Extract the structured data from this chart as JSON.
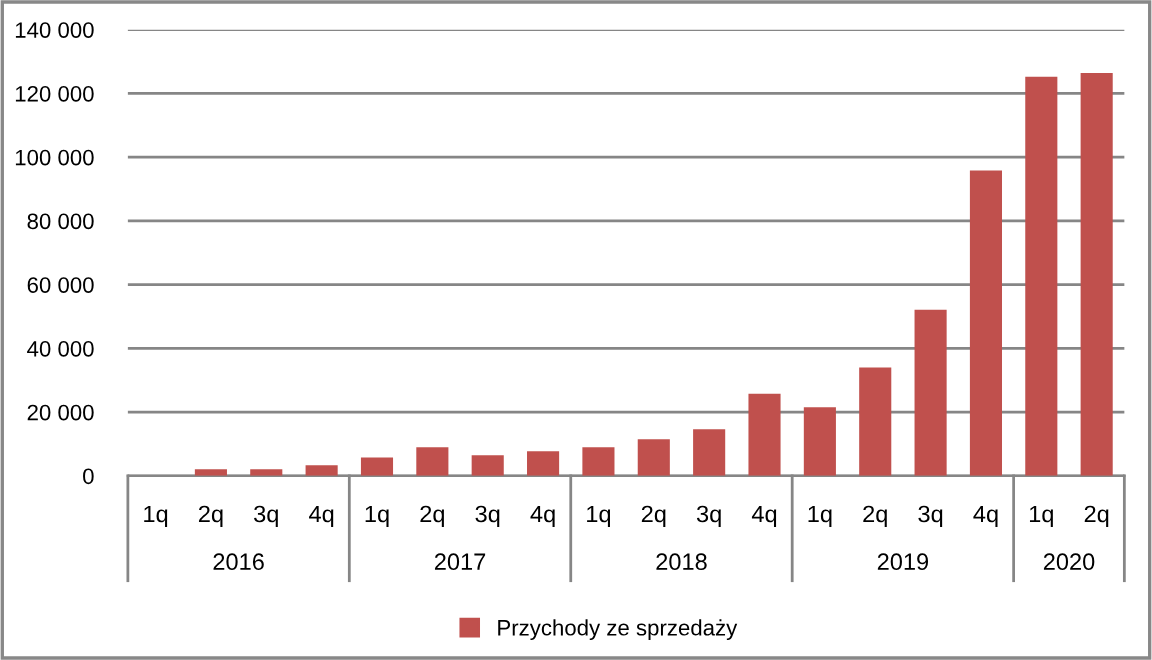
{
  "chart_data": {
    "type": "bar",
    "categories": [
      "1q",
      "2q",
      "3q",
      "4q",
      "1q",
      "2q",
      "3q",
      "4q",
      "1q",
      "2q",
      "3q",
      "4q",
      "1q",
      "2q",
      "3q",
      "4q",
      "1q",
      "2q"
    ],
    "series": [
      {
        "name": "Przychody ze sprzedaży",
        "color": "#c0504d",
        "values": [
          0,
          2100,
          2100,
          3300,
          5800,
          9000,
          6500,
          7700,
          9000,
          11500,
          14600,
          25800,
          21500,
          34000,
          52100,
          95800,
          125200,
          126400
        ]
      }
    ],
    "annotations": [
      "2016",
      "2017",
      "2018",
      "2019",
      "2020"
    ],
    "ylim": [
      0,
      140000
    ],
    "yticks": [
      {
        "value": 0,
        "label": "0"
      },
      {
        "value": 20000,
        "label": "20 000"
      },
      {
        "value": 40000,
        "label": "40 000"
      },
      {
        "value": 60000,
        "label": "60 000"
      },
      {
        "value": 80000,
        "label": "80 000"
      },
      {
        "value": 100000,
        "label": "100 000"
      },
      {
        "value": 120000,
        "label": "120 000"
      },
      {
        "value": 140000,
        "label": "140 000"
      }
    ],
    "grid": "y",
    "legend": "bottom"
  }
}
